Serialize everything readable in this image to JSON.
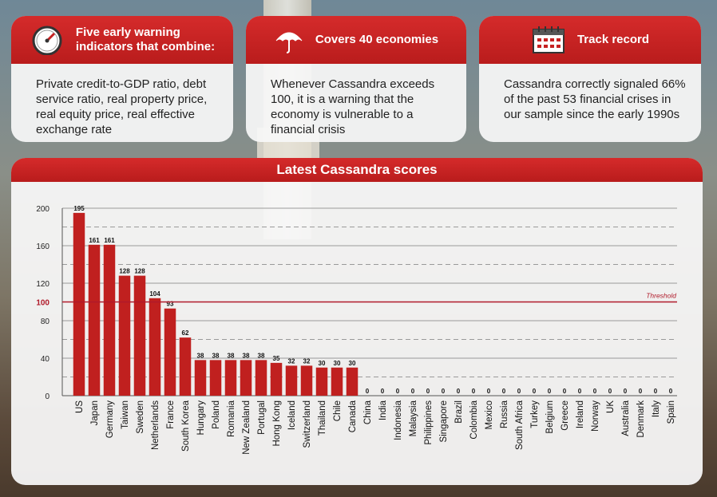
{
  "cards": [
    {
      "title_lines": [
        "Five early warning",
        "indicators that combine:"
      ],
      "body": "Private credit-to-GDP ratio, debt service ratio, real property price, real equity price, real effective exchange rate",
      "icon": "gauge-icon"
    },
    {
      "title_lines": [
        "Covers 40 economies"
      ],
      "body": "Whenever Cassandra exceeds 100, it is a warning that the economy is vulnerable to a financial crisis",
      "icon": "umbrella-icon"
    },
    {
      "title_lines": [
        "Track record"
      ],
      "body": "Cassandra correctly signaled 66% of the past 53 financial crises in our sample since the early 1990s",
      "icon": "calendar-icon"
    }
  ],
  "colors": {
    "brand_red": "#c62121",
    "bar_red": "#c0201f",
    "threshold": "#b01a2a",
    "card_bg": "#f7f7f7"
  },
  "chart_data": {
    "type": "bar",
    "title": "Latest Cassandra scores",
    "categories": [
      "US",
      "Japan",
      "Germany",
      "Taiwan",
      "Sweden",
      "Netherlands",
      "France",
      "South Korea",
      "Hungary",
      "Poland",
      "Romania",
      "New Zealand",
      "Portugal",
      "Hong Kong",
      "Iceland",
      "Switzerland",
      "Thailand",
      "Chile",
      "Canada",
      "China",
      "India",
      "Indonesia",
      "Malaysia",
      "Philippines",
      "Singapore",
      "Brazil",
      "Colombia",
      "Mexico",
      "Russia",
      "South Africa",
      "Turkey",
      "Belgium",
      "Greece",
      "Ireland",
      "Norway",
      "UK",
      "Australia",
      "Denmark",
      "Italy",
      "Spain"
    ],
    "values": [
      195,
      161,
      161,
      128,
      128,
      104,
      93,
      62,
      38,
      38,
      38,
      38,
      38,
      35,
      32,
      32,
      30,
      30,
      30,
      0,
      0,
      0,
      0,
      0,
      0,
      0,
      0,
      0,
      0,
      0,
      0,
      0,
      0,
      0,
      0,
      0,
      0,
      0,
      0,
      0
    ],
    "ylim": [
      0,
      200
    ],
    "yticks": [
      0,
      40,
      80,
      100,
      120,
      160,
      200
    ],
    "threshold": {
      "value": 100,
      "label": "Threshold"
    },
    "xlabel": "",
    "ylabel": "",
    "grid": true
  }
}
